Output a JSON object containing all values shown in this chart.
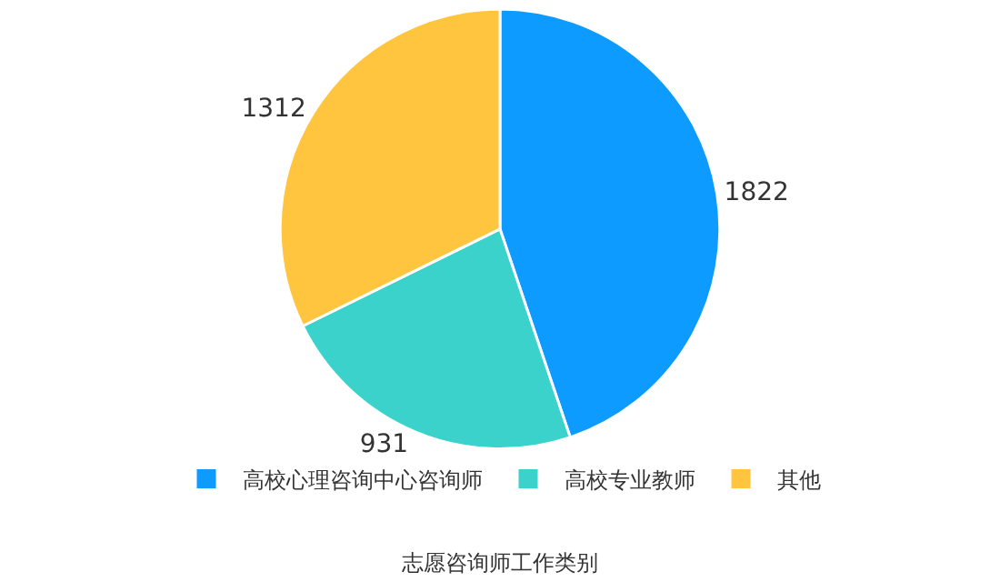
{
  "chart_data": {
    "type": "pie",
    "title": "志愿咨询师工作类别",
    "categories": [
      "高校心理咨询中心咨询师",
      "高校专业教师",
      "其他"
    ],
    "values": [
      1822,
      931,
      1312
    ],
    "colors": [
      "#0d9bff",
      "#3ad2cb",
      "#ffc53f"
    ],
    "data_labels": true,
    "legend": "bottom"
  }
}
